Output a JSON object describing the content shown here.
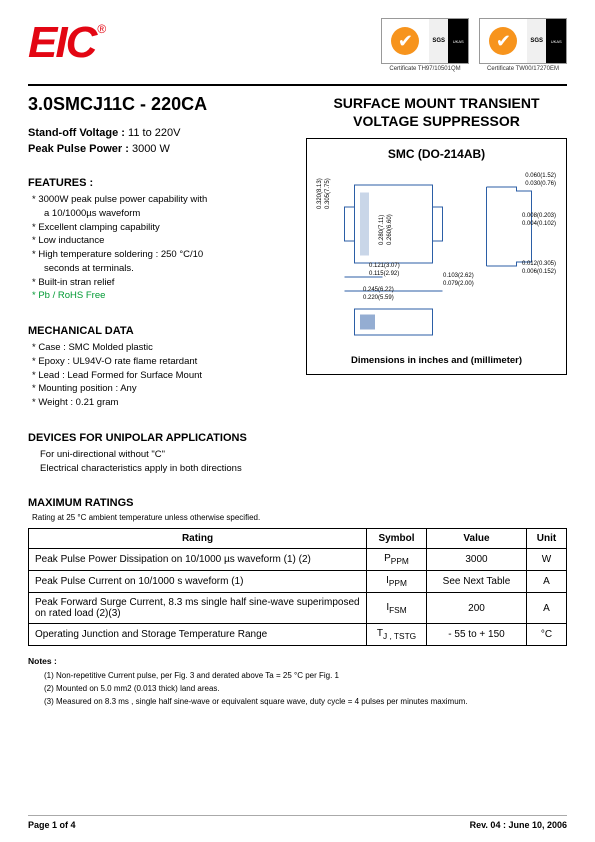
{
  "header": {
    "logo_text": "EIC",
    "cert1_caption": "Certificate TH97/10501QM",
    "cert2_caption": "Certificate TW00/17270EM",
    "sgs": "SGS",
    "ukas": "UKAS"
  },
  "left": {
    "part_title": "3.0SMCJ11C - 220CA",
    "standoff_label": "Stand-off Voltage :",
    "standoff_value": "11 to 220V",
    "ppp_label": "Peak Pulse Power :",
    "ppp_value": "3000 W",
    "features_head": "FEATURES :",
    "features": [
      "3000W peak pulse power capability with",
      "  a 10/1000µs  waveform",
      "Excellent clamping capability",
      "Low inductance",
      "High temperature soldering : 250 °C/10",
      "  seconds at terminals.",
      "Built-in stran relief",
      "Pb / RoHS Free"
    ],
    "mech_head": "MECHANICAL DATA",
    "mech": [
      "Case :  SMC Molded plastic",
      "Epoxy : UL94V-O rate flame retardant",
      "Lead : Lead Formed for Surface Mount",
      "Mounting  position : Any",
      "Weight : 0.21 gram"
    ],
    "unipolar_head": "DEVICES FOR UNIPOLAR APPLICATIONS",
    "unipolar_lines": [
      "For uni-directional without \"C\"",
      "Electrical characteristics apply in both directions"
    ],
    "max_head": "MAXIMUM RATINGS",
    "max_note": "Rating at 25 °C ambient temperature unless otherwise specified."
  },
  "right": {
    "title_l1": "SURFACE MOUNT TRANSIENT",
    "title_l2": "VOLTAGE SUPPRESSOR",
    "pkg_name": "SMC (DO-214AB)",
    "pkg_caption": "Dimensions in inches and  (millimeter)",
    "dims": {
      "d1": "0.060(1.52)",
      "d2": "0.030(0.76)",
      "d3": "0.008(0.203)",
      "d4": "0.004(0.102)",
      "d5": "0.012(0.305)",
      "d6": "0.006(0.152)",
      "d7": "0.103(2.62)",
      "d8": "0.079(2.00)",
      "d9": "0.121(3.07)",
      "d10": "0.115(2.92)",
      "d11": "0.245(6.22)",
      "d12": "0.220(5.59)",
      "d13": "0.320(8.13)",
      "d14": "0.305(7.75)",
      "d15": "0.280(7.11)",
      "d16": "0.260(6.60)"
    }
  },
  "table": {
    "h_rating": "Rating",
    "h_symbol": "Symbol",
    "h_value": "Value",
    "h_unit": "Unit",
    "rows": [
      {
        "rating": "Peak Pulse Power Dissipation on 10/1000 µs waveform (1) (2)",
        "symbol": "P",
        "sub": "PPM",
        "value": "3000",
        "unit": "W"
      },
      {
        "rating": "Peak Pulse Current on 10/1000 s waveform (1)",
        "symbol": "I",
        "sub": "PPM",
        "value": "See Next Table",
        "unit": "A"
      },
      {
        "rating": "Peak Forward Surge Current, 8.3 ms single half sine-wave superimposed on rated load (2)(3)",
        "symbol": "I",
        "sub": "FSM",
        "value": "200",
        "unit": "A"
      },
      {
        "rating": "Operating Junction and Storage Temperature Range",
        "symbol": "T",
        "sub": "J , TSTG",
        "value": "- 55 to + 150",
        "unit": "°C"
      }
    ]
  },
  "notes": {
    "head": "Notes :",
    "n1": "(1) Non-repetitive Current pulse, per Fig. 3 and derated above Ta = 25 °C per Fig. 1",
    "n2": "(2) Mounted on 5.0 mm2 (0.013 thick) land areas.",
    "n3": "(3) Measured on 8.3 ms , single half sine-wave or equivalent square wave, duty cycle = 4 pulses per minutes maximum."
  },
  "footer": {
    "left": "Page 1 of 4",
    "right": "Rev. 04 : June 10, 2006"
  },
  "colors": {
    "brand_red": "#e30613",
    "green": "#009933"
  }
}
